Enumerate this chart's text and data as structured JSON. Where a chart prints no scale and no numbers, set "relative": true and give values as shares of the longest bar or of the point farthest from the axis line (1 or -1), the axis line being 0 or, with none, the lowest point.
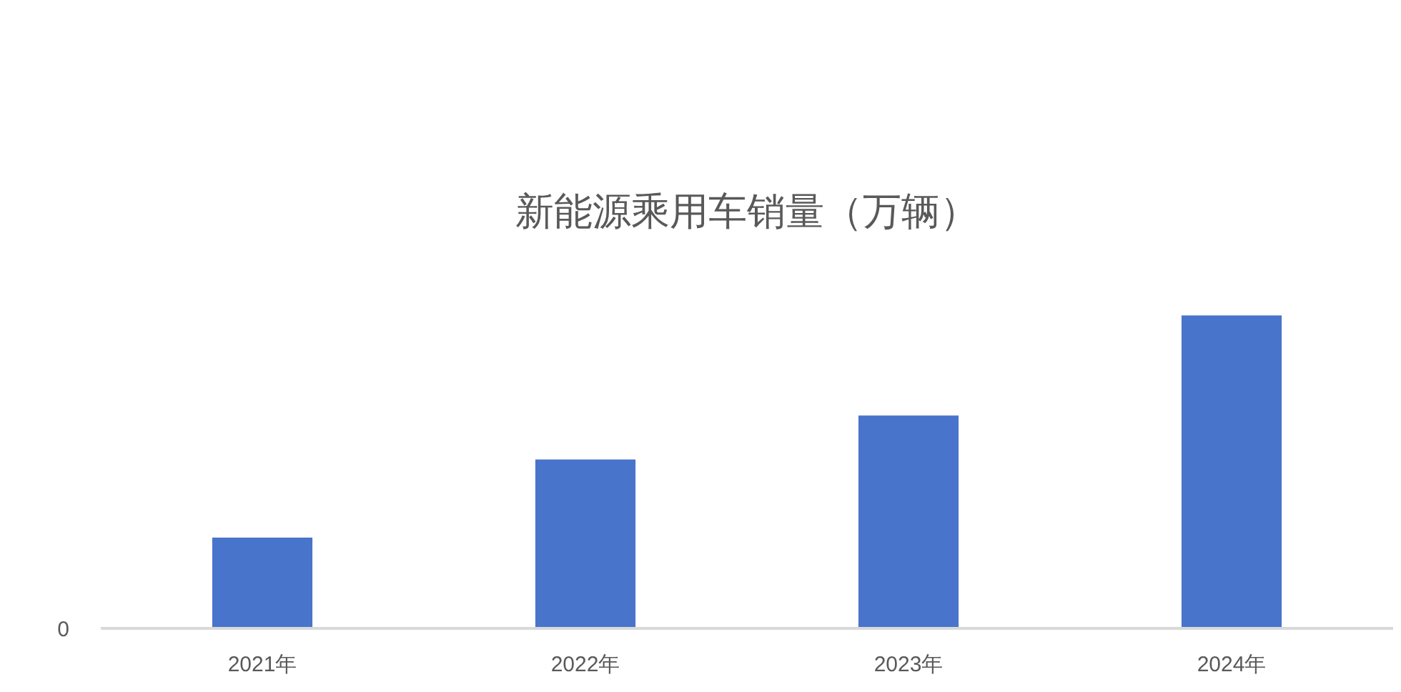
{
  "chart_data": {
    "type": "bar",
    "title": "新能源乘用车销量（万辆）",
    "categories": [
      "2021年",
      "2022年",
      "2023年",
      "2024年"
    ],
    "values": [
      0.29,
      0.54,
      0.68,
      1
    ],
    "color": "#4874cb",
    "relative": true,
    "annotations": [
      "0"
    ]
  }
}
